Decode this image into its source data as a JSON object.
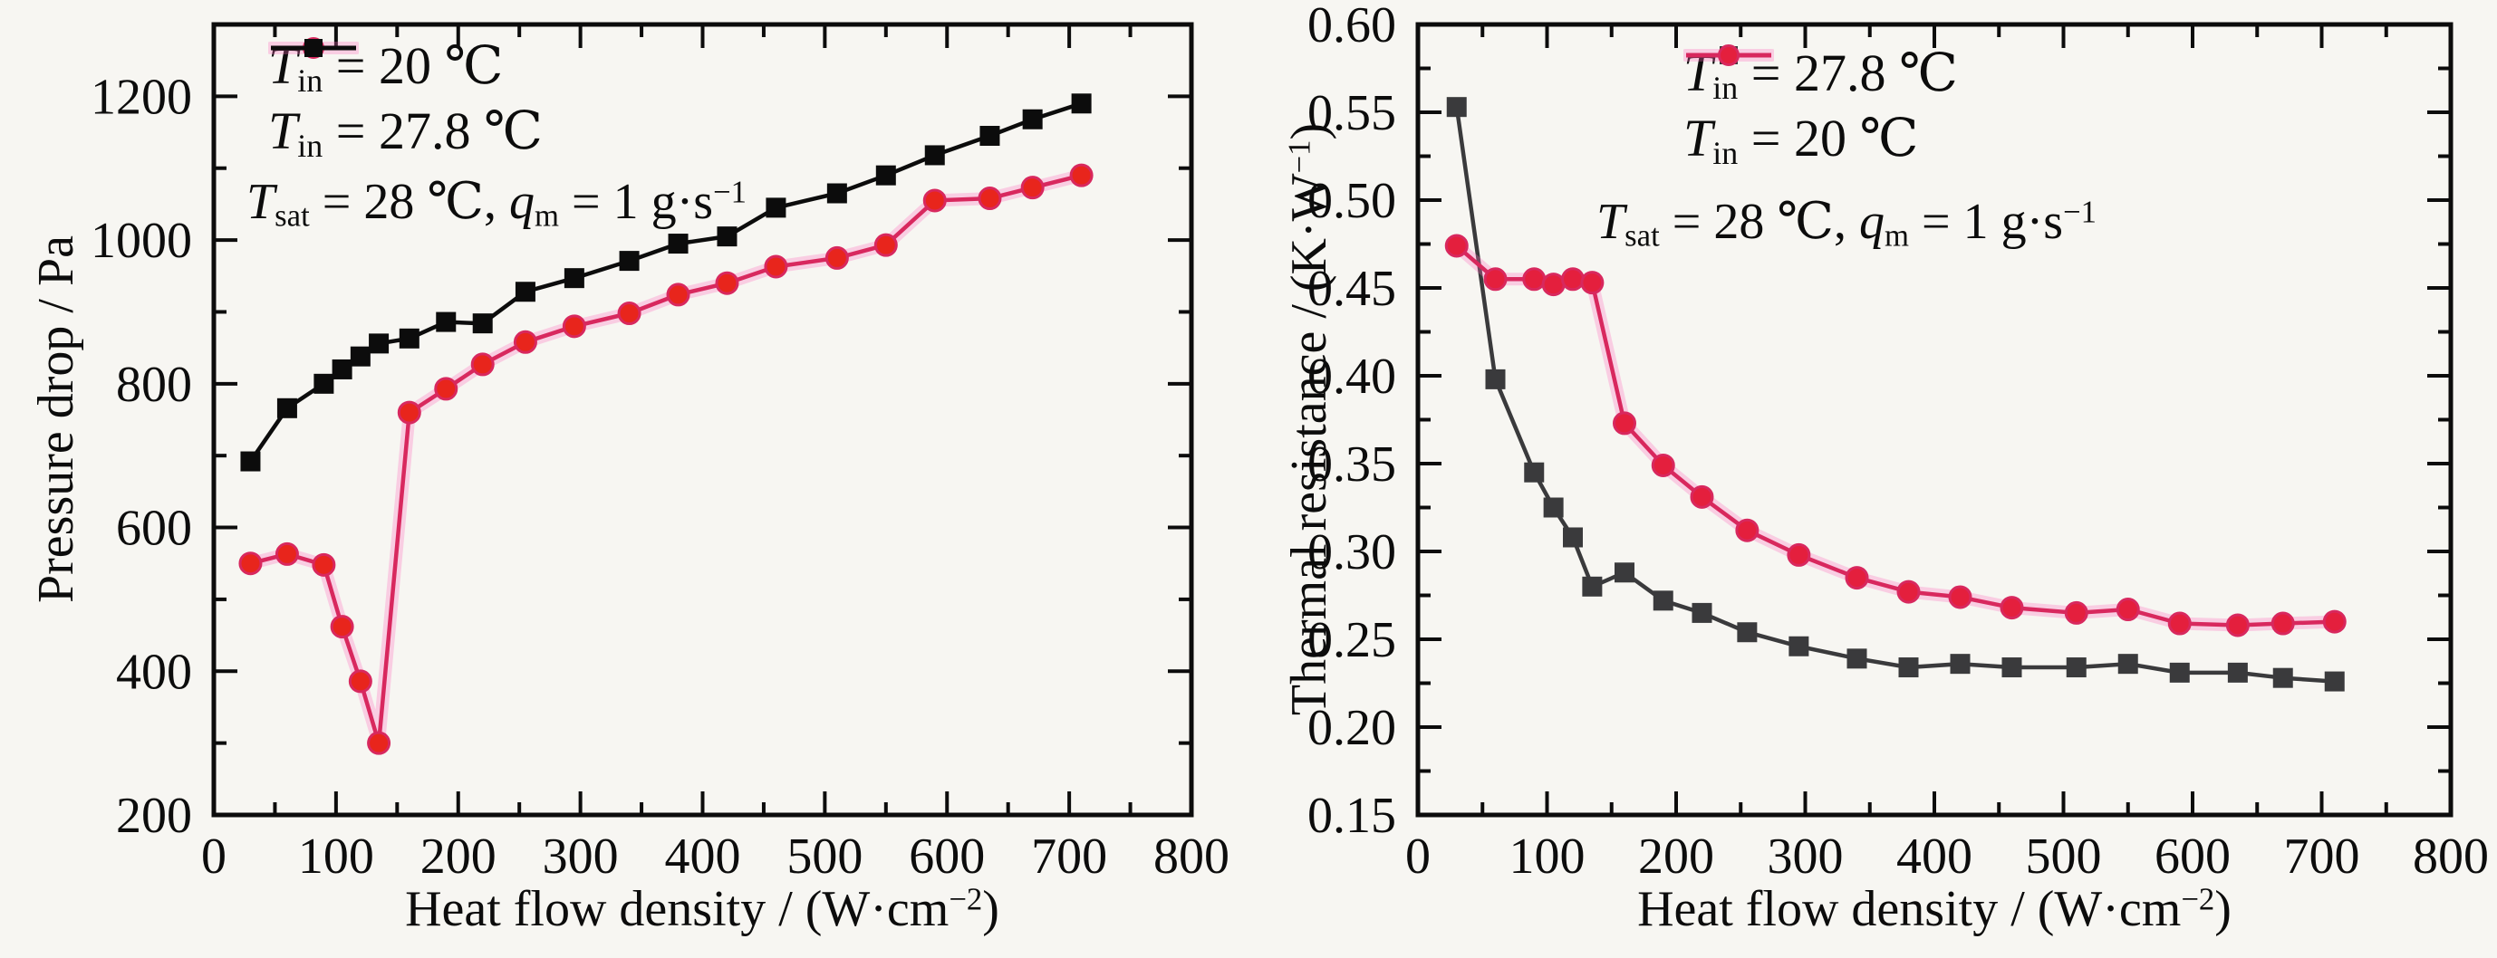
{
  "page": {
    "background": "#f7f6f2"
  },
  "chart_data": [
    {
      "type": "line",
      "panel": "left",
      "title": "",
      "xlabel": "Heat flow density / (W·cm−2)",
      "ylabel": "Pressure drop / Pa",
      "xlabel_segments": [
        {
          "t": "Heat flow density / (W·cm"
        },
        {
          "t": "−2",
          "s": "sup"
        },
        {
          "t": ")"
        }
      ],
      "ylabel_segments": [
        {
          "t": "Pressure drop / Pa"
        }
      ],
      "xlim": [
        0,
        800
      ],
      "ylim": [
        200,
        1300
      ],
      "grid": false,
      "legend_position": "top-left-inside",
      "x_tick_values": [
        0,
        100,
        200,
        300,
        400,
        500,
        600,
        700,
        800
      ],
      "x_tick_labels": [
        "0",
        "100",
        "200",
        "300",
        "400",
        "500",
        "600",
        "700",
        "800"
      ],
      "x_minor_ticks": [
        50,
        150,
        250,
        350,
        450,
        550,
        650,
        750
      ],
      "y_tick_values": [
        200,
        400,
        600,
        800,
        1000,
        1200
      ],
      "y_tick_labels": [
        "200",
        "400",
        "600",
        "800",
        "1000",
        "1200"
      ],
      "y_minor_ticks": [
        300,
        500,
        700,
        900,
        1100,
        1300
      ],
      "x": [
        30,
        60,
        90,
        105,
        120,
        135,
        160,
        190,
        220,
        255,
        295,
        340,
        380,
        420,
        460,
        510,
        550,
        590,
        635,
        670,
        710
      ],
      "series": [
        {
          "name": "Tin = 20 ℃",
          "name_segments": [
            {
              "t": "T",
              "s": "i"
            },
            {
              "t": "in",
              "s": "sub"
            },
            {
              "t": " = 20 ℃"
            }
          ],
          "marker": "circle",
          "color": "#d8285e",
          "marker_color": "#e8251c",
          "halo": true,
          "values": [
            550,
            563,
            548,
            462,
            386,
            300,
            760,
            793,
            827,
            858,
            880,
            898,
            924,
            940,
            963,
            975,
            993,
            1055,
            1058,
            1073,
            1090
          ]
        },
        {
          "name": "Tin = 27.8 ℃",
          "name_segments": [
            {
              "t": "T",
              "s": "i"
            },
            {
              "t": "in",
              "s": "sub"
            },
            {
              "t": " = 27.8 ℃"
            }
          ],
          "marker": "square",
          "color": "#0c0c0c",
          "marker_color": "#0c0c0c",
          "halo": false,
          "values": [
            692,
            766,
            800,
            820,
            838,
            856,
            863,
            886,
            884,
            928,
            947,
            971,
            995,
            1005,
            1045,
            1065,
            1090,
            1118,
            1145,
            1168,
            1190
          ]
        }
      ],
      "annotation": "Tsat = 28 ℃, qm = 1 g·s−1",
      "annotation_segments": [
        {
          "t": "T",
          "s": "i"
        },
        {
          "t": "sat",
          "s": "sub"
        },
        {
          "t": " = 28 ℃, "
        },
        {
          "t": "q",
          "s": "i"
        },
        {
          "t": "m",
          "s": "sub"
        },
        {
          "t": " = 1 g·s"
        },
        {
          "t": "−1",
          "s": "sup"
        }
      ]
    },
    {
      "type": "line",
      "panel": "right",
      "title": "",
      "xlabel": "Heat flow density / (W·cm−2)",
      "ylabel": "Thermal resistance / (K·W−1)",
      "xlabel_segments": [
        {
          "t": "Heat flow density / (W·cm"
        },
        {
          "t": "−2",
          "s": "sup"
        },
        {
          "t": ")"
        }
      ],
      "ylabel_segments": [
        {
          "t": "Thermal resistance / (K·W"
        },
        {
          "t": "−1",
          "s": "sup"
        },
        {
          "t": ")"
        }
      ],
      "xlim": [
        0,
        800
      ],
      "ylim": [
        0.15,
        0.6
      ],
      "grid": false,
      "legend_position": "top-center-inside",
      "x_tick_values": [
        0,
        100,
        200,
        300,
        400,
        500,
        600,
        700,
        800
      ],
      "x_tick_labels": [
        "0",
        "100",
        "200",
        "300",
        "400",
        "500",
        "600",
        "700",
        "800"
      ],
      "x_minor_ticks": [
        50,
        150,
        250,
        350,
        450,
        550,
        650,
        750
      ],
      "y_tick_values": [
        0.15,
        0.2,
        0.25,
        0.3,
        0.35,
        0.4,
        0.45,
        0.5,
        0.55,
        0.6
      ],
      "y_tick_labels": [
        "0.15",
        "0.20",
        "0.25",
        "0.30",
        "0.35",
        "0.40",
        "0.45",
        "0.50",
        "0.55",
        "0.60"
      ],
      "y_minor_ticks": [
        0.175,
        0.225,
        0.275,
        0.325,
        0.375,
        0.425,
        0.475,
        0.525,
        0.575
      ],
      "x": [
        30,
        60,
        90,
        105,
        120,
        135,
        160,
        190,
        220,
        255,
        295,
        340,
        380,
        420,
        460,
        510,
        550,
        590,
        635,
        670,
        710
      ],
      "series": [
        {
          "name": "Tin = 27.8 ℃",
          "name_segments": [
            {
              "t": "T",
              "s": "i"
            },
            {
              "t": "in",
              "s": "sub"
            },
            {
              "t": " = 27.8 ℃"
            }
          ],
          "marker": "square",
          "color": "#3a3a3c",
          "marker_color": "#3a3a3c",
          "halo": false,
          "values": [
            0.553,
            0.398,
            0.345,
            0.325,
            0.308,
            0.28,
            0.288,
            0.272,
            0.265,
            0.254,
            0.246,
            0.239,
            0.234,
            0.236,
            0.234,
            0.234,
            0.236,
            0.231,
            0.231,
            0.228,
            0.226
          ]
        },
        {
          "name": "Tin = 20 ℃",
          "name_segments": [
            {
              "t": "T",
              "s": "i"
            },
            {
              "t": "in",
              "s": "sub"
            },
            {
              "t": " = 20 ℃"
            }
          ],
          "marker": "circle",
          "color": "#d8285e",
          "marker_color": "#e41f3d",
          "halo": true,
          "values": [
            0.474,
            0.455,
            0.455,
            0.452,
            0.455,
            0.453,
            0.373,
            0.349,
            0.331,
            0.312,
            0.298,
            0.285,
            0.277,
            0.274,
            0.268,
            0.265,
            0.267,
            0.259,
            0.258,
            0.259,
            0.26
          ]
        }
      ],
      "annotation": "Tsat = 28 ℃, qm = 1 g·s−1",
      "annotation_segments": [
        {
          "t": "T",
          "s": "i"
        },
        {
          "t": "sat",
          "s": "sub"
        },
        {
          "t": " = 28 ℃, "
        },
        {
          "t": "q",
          "s": "i"
        },
        {
          "t": "m",
          "s": "sub"
        },
        {
          "t": " = 1 g·s"
        },
        {
          "t": "−1",
          "s": "sup"
        }
      ]
    }
  ]
}
